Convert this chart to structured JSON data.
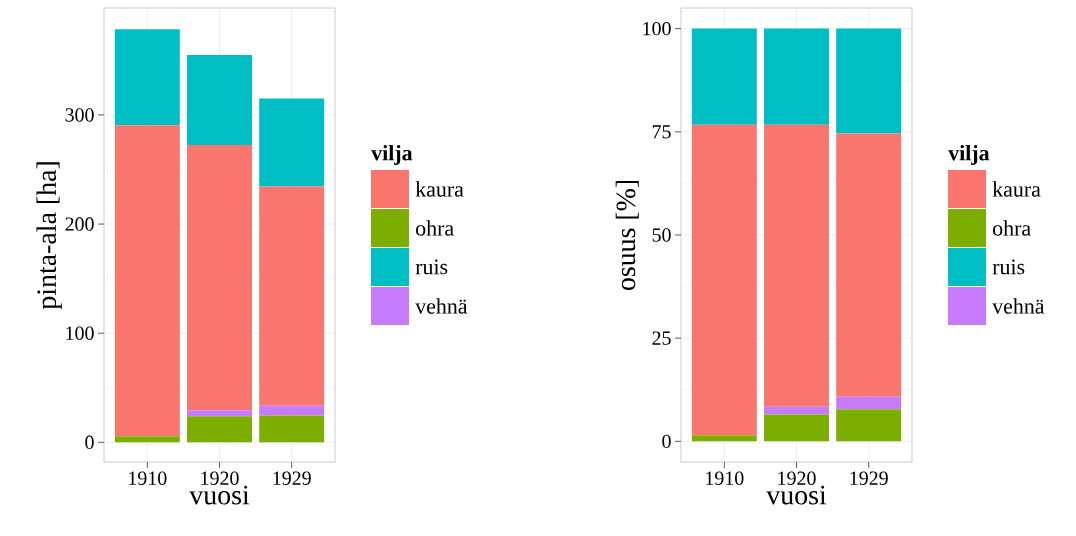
{
  "chart_data": [
    {
      "type": "bar",
      "stacked": true,
      "xlabel": "vuosi",
      "ylabel": "pinta-ala [ha]",
      "legend_title": "vilja",
      "legend": "right",
      "grid": true,
      "categories": [
        "1910",
        "1920",
        "1929"
      ],
      "ylim": [
        -18,
        398
      ],
      "yticks": [
        0,
        100,
        200,
        300
      ],
      "series": [
        {
          "name": "ohra",
          "color": "#7cae00",
          "values": [
            5.5,
            24,
            24.5
          ]
        },
        {
          "name": "vehnä",
          "color": "#c77cff",
          "values": [
            0,
            5.5,
            9
          ]
        },
        {
          "name": "kaura",
          "color": "#f8766d",
          "values": [
            285,
            243,
            201
          ]
        },
        {
          "name": "ruis",
          "color": "#00bfc4",
          "values": [
            88,
            82.5,
            80.5
          ]
        }
      ]
    },
    {
      "type": "bar",
      "stacked": true,
      "xlabel": "vuosi",
      "ylabel": "osuus [%]",
      "legend_title": "vilja",
      "legend": "right",
      "grid": true,
      "categories": [
        "1910",
        "1920",
        "1929"
      ],
      "ylim": [
        -5,
        105
      ],
      "yticks": [
        0,
        25,
        50,
        75,
        100
      ],
      "series": [
        {
          "name": "ohra",
          "color": "#7cae00",
          "values": [
            1.5,
            6.5,
            7.8
          ]
        },
        {
          "name": "vehnä",
          "color": "#c77cff",
          "values": [
            0,
            1.9,
            3.0
          ]
        },
        {
          "name": "kaura",
          "color": "#f8766d",
          "values": [
            75.2,
            68.3,
            63.8
          ]
        },
        {
          "name": "ruis",
          "color": "#00bfc4",
          "values": [
            23.3,
            23.3,
            25.4
          ]
        }
      ]
    }
  ]
}
